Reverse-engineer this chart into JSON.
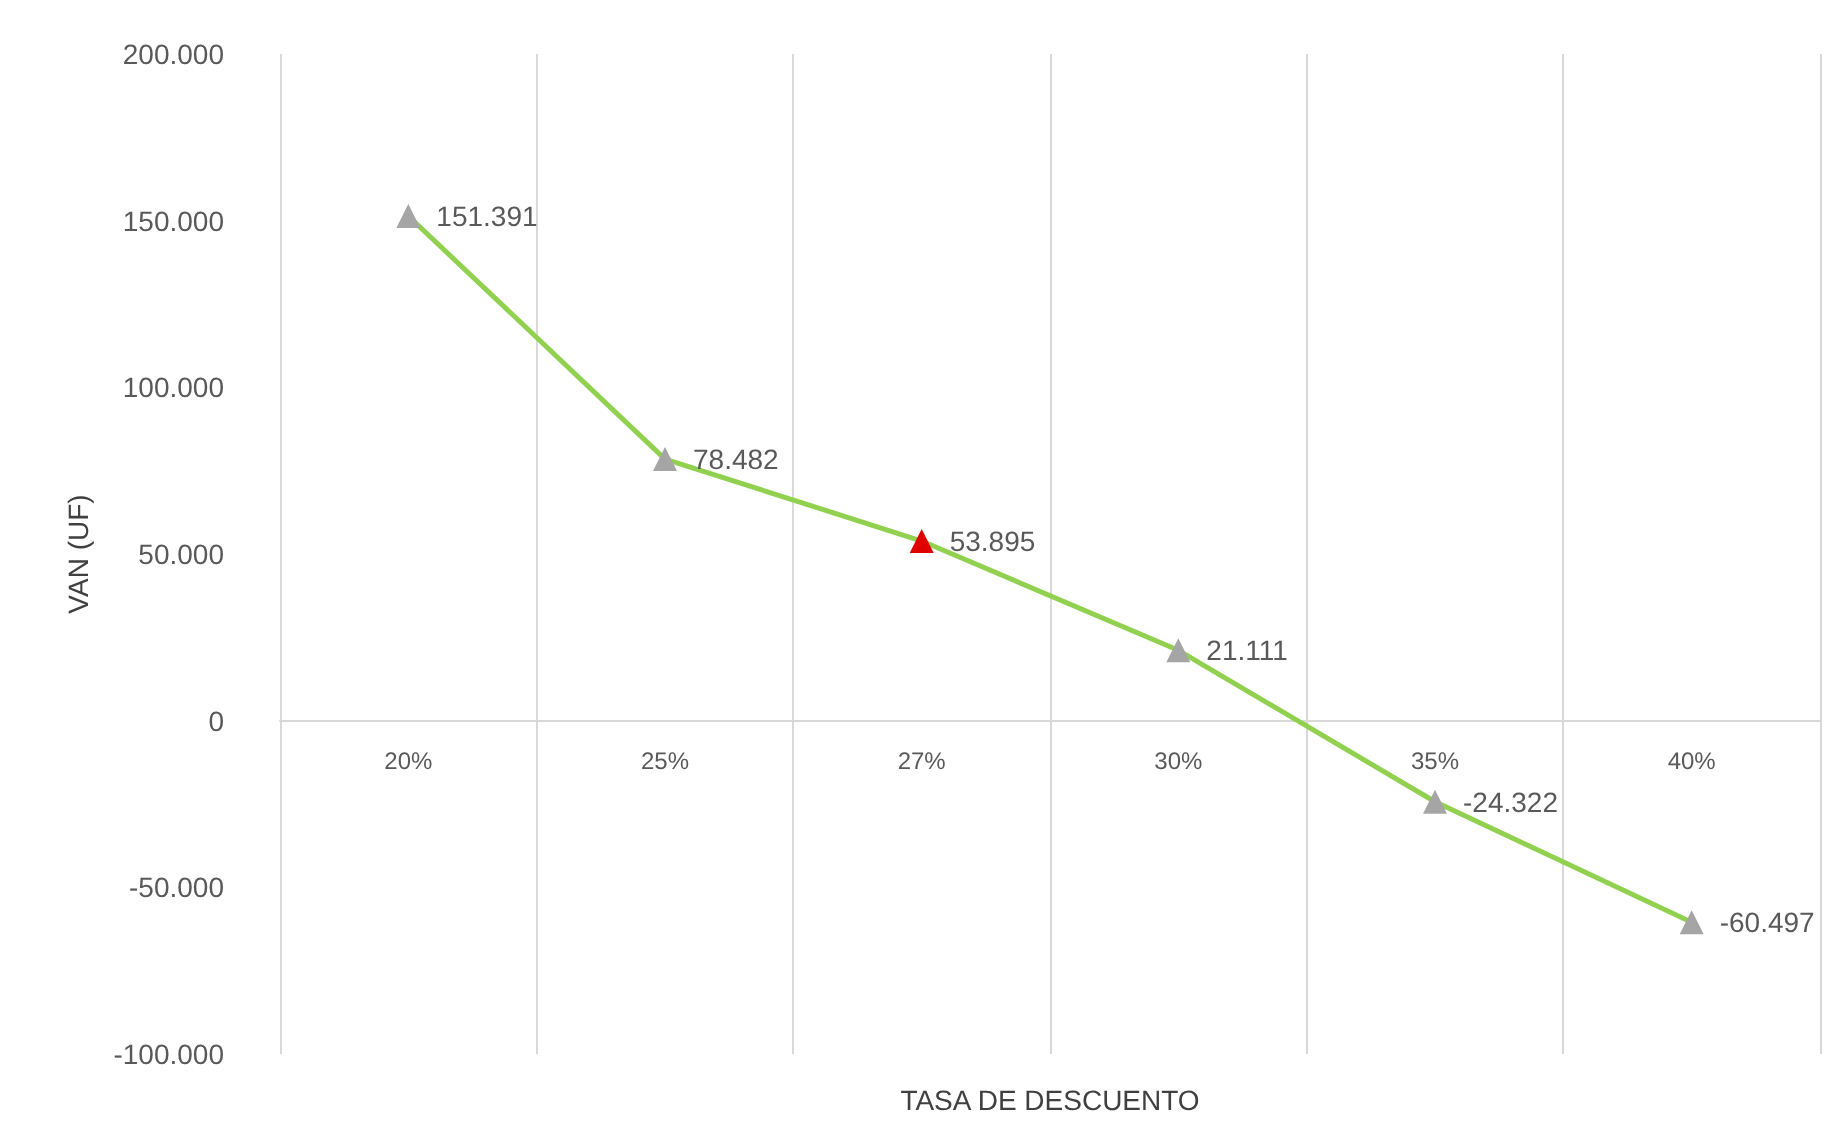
{
  "chart_data": {
    "type": "line",
    "xlabel": "TASA DE DESCUENTO",
    "ylabel": "VAN (UF)",
    "categories": [
      "20%",
      "25%",
      "27%",
      "30%",
      "35%",
      "40%"
    ],
    "series": [
      {
        "color": "#92d050",
        "colors": [
          "#a5a5a5",
          "#a5a5a5",
          "#e00000",
          "#a5a5a5",
          "#a5a5a5",
          "#a5a5a5"
        ],
        "values": [
          151391,
          78482,
          53895,
          21111,
          -24322,
          -60497
        ],
        "value_labels": [
          "151.391",
          "78.482",
          "53.895",
          "21.111",
          "-24.322",
          "-60.497"
        ]
      }
    ],
    "ylim": [
      -100000,
      200000
    ],
    "yticks": [
      {
        "value": -100000,
        "label": "-100.000"
      },
      {
        "value": -50000,
        "label": "-50.000"
      },
      {
        "value": 0,
        "label": "0"
      },
      {
        "value": 50000,
        "label": "50.000"
      },
      {
        "value": 100000,
        "label": "100.000"
      },
      {
        "value": 150000,
        "label": "150.000"
      },
      {
        "value": 200000,
        "label": "200.000"
      }
    ],
    "grid": "x",
    "marker": "triangle",
    "line_style": "solid"
  }
}
